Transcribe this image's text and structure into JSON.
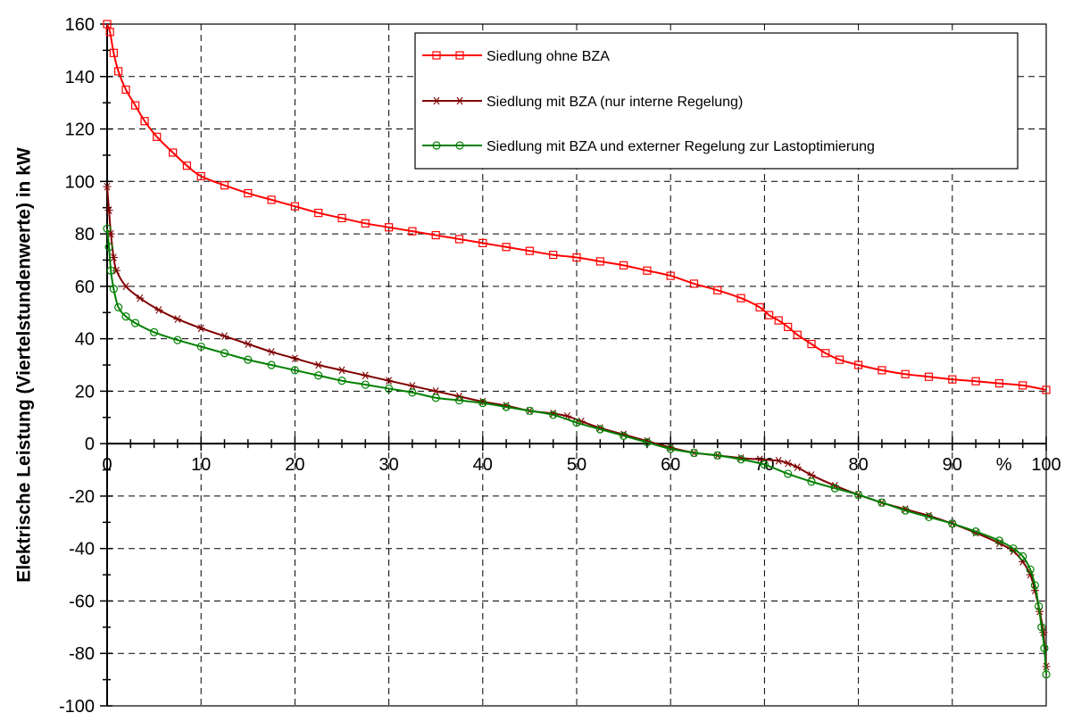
{
  "chart_data": {
    "type": "line",
    "title": "",
    "xlabel": "",
    "ylabel": "Elektrische Leistung (Viertelstundenwerte) in kW",
    "x_unit_label": "%",
    "xlim": [
      0,
      100
    ],
    "ylim": [
      -100,
      160
    ],
    "x_ticks": [
      "0",
      "10",
      "20",
      "30",
      "40",
      "50",
      "60",
      "70",
      "80",
      "90",
      "100"
    ],
    "y_ticks": [
      "160",
      "140",
      "120",
      "100",
      "80",
      "60",
      "40",
      "20",
      "0",
      "-20",
      "-40",
      "-60",
      "-80",
      "-100"
    ],
    "grid": true,
    "legend_position": "top-right",
    "series": [
      {
        "name": "Siedlung ohne BZA",
        "color": "#ff0000",
        "marker": "square",
        "x": [
          0,
          0.3,
          0.7,
          1.2,
          2.0,
          3.0,
          4.0,
          5.3,
          7.0,
          8.5,
          10,
          12.5,
          15,
          17.5,
          20,
          22.5,
          25,
          27.5,
          30,
          32.5,
          35,
          37.5,
          40,
          42.5,
          45,
          47.5,
          50,
          52.5,
          55,
          57.5,
          60,
          62.5,
          65,
          67.5,
          69.5,
          70.5,
          71.5,
          72.5,
          73.5,
          75,
          76.5,
          78,
          80,
          82.5,
          85,
          87.5,
          90,
          92.5,
          95,
          97.5,
          100
        ],
        "y": [
          160,
          157,
          149,
          142,
          135,
          129,
          123,
          117,
          111,
          106,
          102,
          98.5,
          95.5,
          93,
          90.5,
          88,
          86,
          84,
          82.5,
          81,
          79.5,
          78,
          76.5,
          75,
          73.5,
          72,
          71,
          69.5,
          68,
          66,
          64,
          61,
          58.5,
          55.5,
          52,
          49,
          47,
          44.5,
          41.5,
          38,
          34.5,
          32,
          30,
          28,
          26.5,
          25.5,
          24.5,
          23.8,
          23,
          22.2,
          20.5
        ]
      },
      {
        "name": "Siedlung mit BZA (nur interne Regelung)",
        "color": "#800000",
        "marker": "star",
        "x": [
          0,
          0.2,
          0.4,
          0.7,
          1.0,
          2.0,
          3.5,
          5.5,
          7.5,
          10,
          12.5,
          15,
          17.5,
          20,
          22.5,
          25,
          27.5,
          30,
          32.5,
          35,
          37.5,
          40,
          42.5,
          45,
          47.5,
          49,
          50.5,
          52.5,
          55,
          57.5,
          60,
          62.5,
          65,
          67.5,
          69.5,
          71.5,
          72.5,
          73.5,
          75,
          77.5,
          80,
          82.5,
          85,
          87.5,
          90,
          92.5,
          95,
          96.5,
          97.5,
          98.3,
          98.8,
          99.3,
          99.7,
          100
        ],
        "y": [
          98,
          89,
          80,
          71,
          66,
          60,
          55.5,
          51,
          47.5,
          44,
          41,
          38,
          35,
          32.5,
          30,
          28,
          26,
          24,
          22,
          20,
          18,
          16,
          14.5,
          12.5,
          11.5,
          10.5,
          8.5,
          6,
          3.5,
          1,
          -1.5,
          -3.5,
          -4.5,
          -5.5,
          -6,
          -6.5,
          -7.5,
          -9,
          -12,
          -16,
          -19.5,
          -22.5,
          -25,
          -27.5,
          -30.5,
          -34,
          -38,
          -41,
          -45,
          -50,
          -56,
          -64,
          -72,
          -85
        ]
      },
      {
        "name": "Siedlung mit BZA und externer Regelung zur Lastoptimierung",
        "color": "#008000",
        "marker": "circle",
        "x": [
          0,
          0.2,
          0.4,
          0.7,
          1.2,
          2.0,
          3.0,
          5.0,
          7.5,
          10,
          12.5,
          15,
          17.5,
          20,
          22.5,
          25,
          27.5,
          30,
          32.5,
          35,
          37.5,
          40,
          42.5,
          45,
          47.5,
          50,
          52.5,
          55,
          57.5,
          60,
          62.5,
          65,
          67.5,
          70,
          72.5,
          75,
          77.5,
          80,
          82.5,
          85,
          87.5,
          90,
          92.5,
          95,
          96.5,
          97.5,
          98.3,
          98.8,
          99.2,
          99.5,
          99.8,
          100
        ],
        "y": [
          82,
          75,
          66,
          59,
          52,
          48.5,
          46,
          42.5,
          39.5,
          37,
          34.5,
          32,
          30,
          28,
          26,
          24,
          22.5,
          21,
          19.5,
          17.5,
          16.5,
          15.5,
          14,
          12.5,
          11,
          8,
          5.5,
          3,
          0.5,
          -2,
          -3.5,
          -4.5,
          -6,
          -8,
          -11.5,
          -14.5,
          -17,
          -19.5,
          -22.5,
          -25.5,
          -28,
          -30.5,
          -33.5,
          -37,
          -40,
          -43,
          -48,
          -54,
          -62,
          -70,
          -78,
          -88
        ]
      }
    ]
  }
}
